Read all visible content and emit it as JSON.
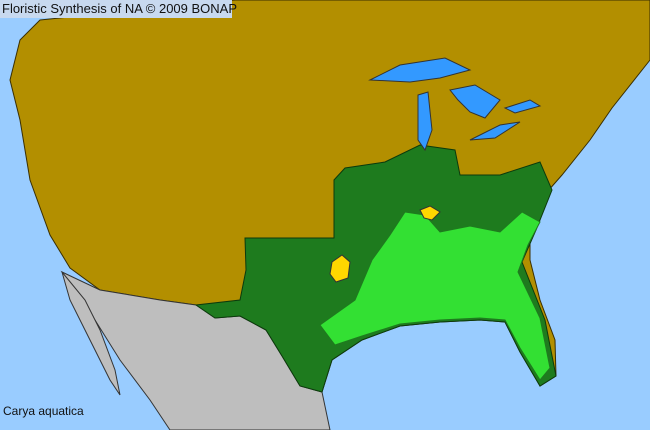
{
  "header": {
    "title": "Floristic Synthesis of NA © 2009 BONAP"
  },
  "map": {
    "species": "Carya aquatica",
    "colors": {
      "ocean": "#99ccff",
      "absent_in_state": "#b38f00",
      "present_in_state": "#1e7b1e",
      "present_in_county": "#33e033",
      "county_rare_or_other": "#ffd700",
      "outside_range": "#bebebe",
      "lakes": "#3399ff",
      "county_borders": "#333333"
    }
  }
}
